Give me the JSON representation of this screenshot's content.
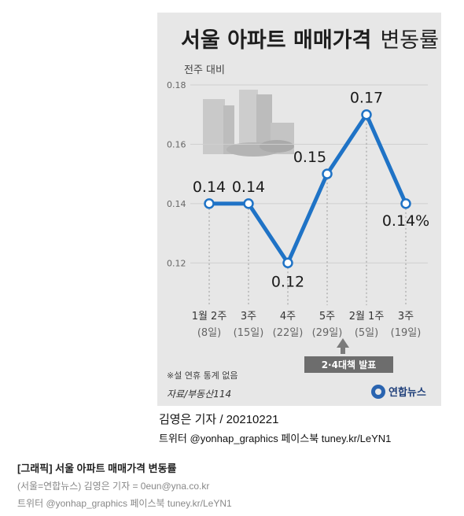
{
  "chart_data": {
    "type": "line",
    "title_main": "서울 아파트 매매가격",
    "title_sub": "변동률",
    "ylabel": "전주 대비",
    "ylim": [
      0.11,
      0.18
    ],
    "yticks": [
      "0.18",
      "0.16",
      "0.14",
      "0.12"
    ],
    "tick_values": [
      0.18,
      0.16,
      0.14,
      0.12
    ],
    "categories_line1": [
      "1월 2주",
      "3주",
      "4주",
      "5주",
      "2월 1주",
      "3주"
    ],
    "categories_line2": [
      "(8일)",
      "(15일)",
      "(22일)",
      "(29일)",
      "(5일)",
      "(19일)"
    ],
    "values": [
      0.14,
      0.14,
      0.12,
      0.15,
      0.17,
      0.14
    ],
    "value_labels": [
      "0.14",
      "0.14",
      "0.12",
      "0.15",
      "0.17",
      "0.14%"
    ],
    "line_color": "#1f73c6",
    "annotation": "2·4대책 발표",
    "note": "※설 연휴 통계 없음",
    "source": "자료/부동산114",
    "brand": "연합뉴스"
  },
  "credit": {
    "author": "김영은 기자 / 20210221",
    "social": "트위터 @yonhap_graphics  페이스북 tuney.kr/LeYN1"
  },
  "caption": {
    "title": "[그래픽] 서울 아파트 매매가격 변동률",
    "byline": "(서울=연합뉴스) 김영은 기자 = 0eun@yna.co.kr",
    "social": "트위터 @yonhap_graphics 페이스북 tuney.kr/LeYN1"
  }
}
